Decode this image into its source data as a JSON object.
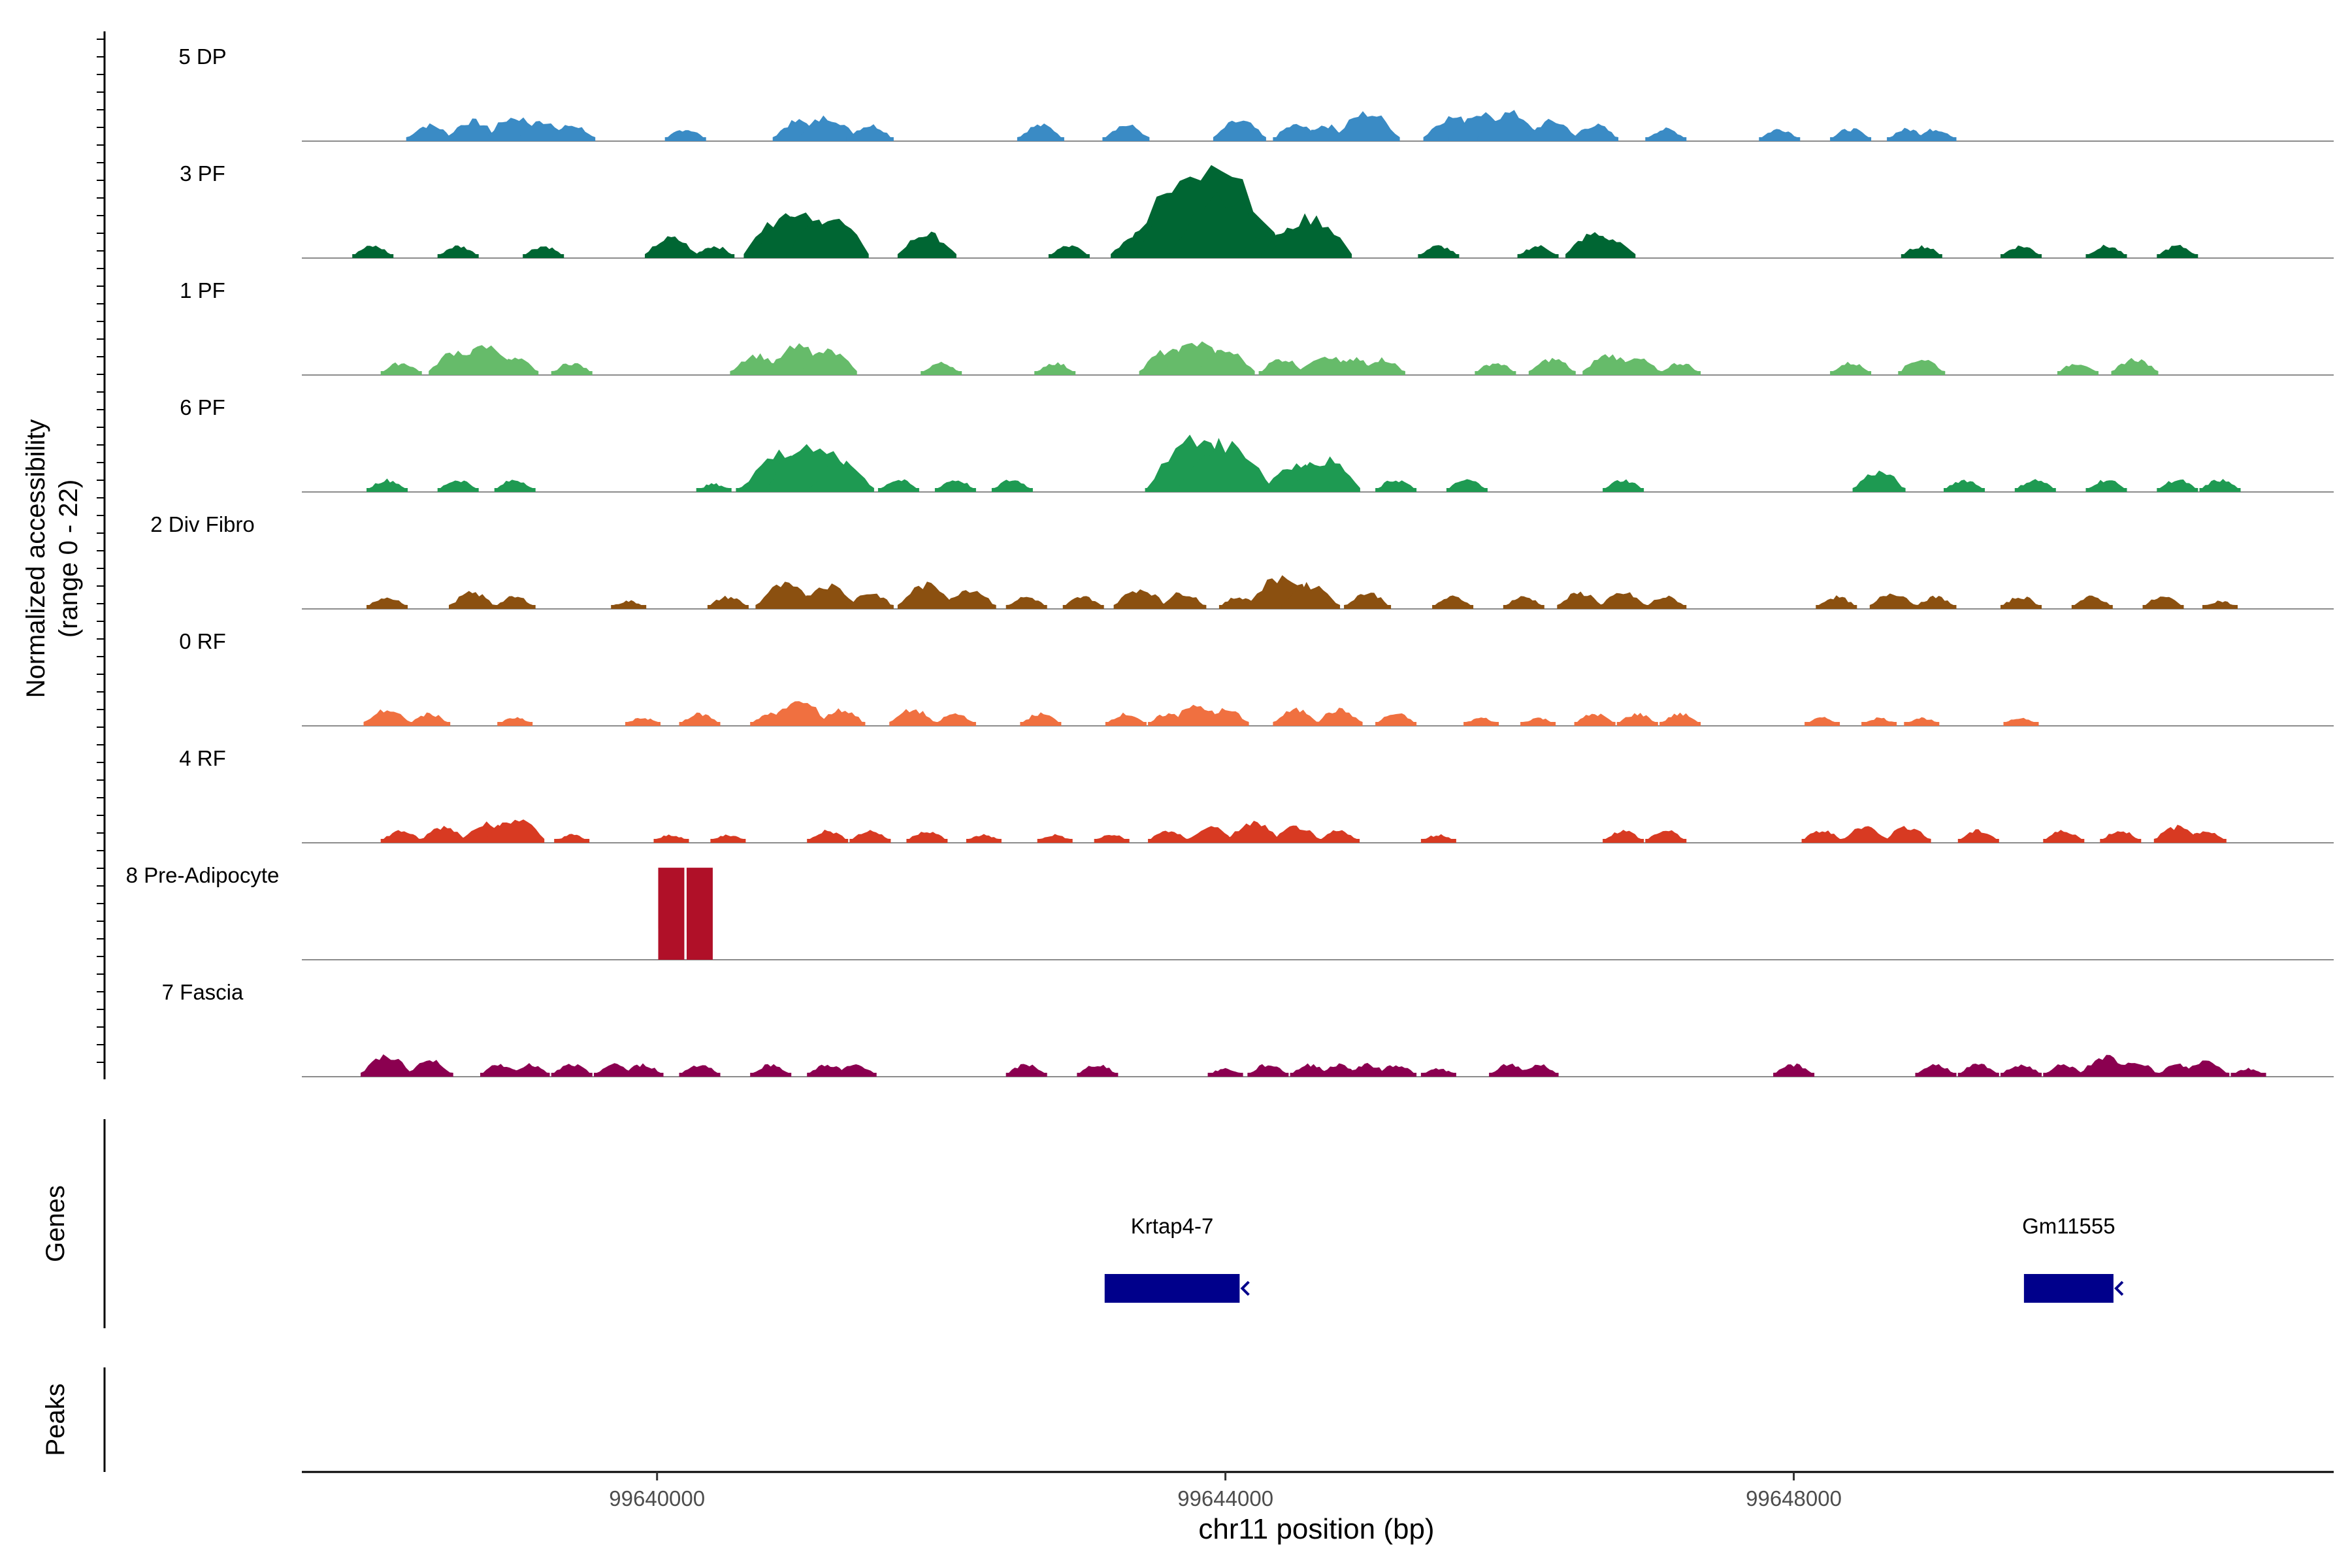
{
  "chart_data": {
    "type": "coverage",
    "title": "",
    "chromosome": "chr11",
    "xlabel": "chr11 position (bp)",
    "xlim": [
      99637500,
      99651800
    ],
    "x_ticks": [
      99640000,
      99644000,
      99648000
    ],
    "x_tick_labels": [
      "99640000",
      "99644000",
      "99648000"
    ],
    "ylabel_line1": "Normalized accessibility",
    "ylabel_line2": "(range 0 - 22)",
    "ylim": [
      0,
      22
    ],
    "tracks": [
      {
        "name": "5 DP",
        "color": "#3A8BC5",
        "peaks": [
          [
            99638400,
            4
          ],
          [
            99638700,
            5
          ],
          [
            99639000,
            6
          ],
          [
            99639200,
            5
          ],
          [
            99639400,
            4
          ],
          [
            99640200,
            3
          ],
          [
            99641000,
            5
          ],
          [
            99641200,
            6
          ],
          [
            99641500,
            4
          ],
          [
            99642700,
            4
          ],
          [
            99643300,
            4
          ],
          [
            99644100,
            5
          ],
          [
            99644500,
            4
          ],
          [
            99644700,
            4
          ],
          [
            99645000,
            7
          ],
          [
            99645600,
            6
          ],
          [
            99645800,
            7
          ],
          [
            99646000,
            7
          ],
          [
            99646300,
            5
          ],
          [
            99646600,
            4
          ],
          [
            99647100,
            3
          ],
          [
            99647900,
            3
          ],
          [
            99648400,
            3
          ],
          [
            99648800,
            3
          ],
          [
            99649000,
            3
          ]
        ]
      },
      {
        "name": "3 PF",
        "color": "#006633",
        "peaks": [
          [
            99638000,
            3
          ],
          [
            99638600,
            3
          ],
          [
            99639200,
            3
          ],
          [
            99640100,
            5
          ],
          [
            99640400,
            3
          ],
          [
            99640900,
            10
          ],
          [
            99641000,
            12
          ],
          [
            99641200,
            10
          ],
          [
            99641900,
            6
          ],
          [
            99642900,
            3
          ],
          [
            99643400,
            6
          ],
          [
            99643600,
            12
          ],
          [
            99643800,
            20
          ],
          [
            99643900,
            21
          ],
          [
            99644000,
            15
          ],
          [
            99644300,
            6
          ],
          [
            99644500,
            8
          ],
          [
            99644600,
            10
          ],
          [
            99645500,
            3
          ],
          [
            99646200,
            3
          ],
          [
            99646600,
            6
          ],
          [
            99646700,
            5
          ],
          [
            99648900,
            3
          ],
          [
            99649600,
            3
          ],
          [
            99650200,
            3
          ],
          [
            99650700,
            3
          ]
        ]
      },
      {
        "name": "1 PF",
        "color": "#66BB6A",
        "peaks": [
          [
            99638200,
            3
          ],
          [
            99638600,
            6
          ],
          [
            99638800,
            7
          ],
          [
            99639000,
            4
          ],
          [
            99639400,
            3
          ],
          [
            99640700,
            5
          ],
          [
            99641000,
            7
          ],
          [
            99641200,
            6
          ],
          [
            99642000,
            3
          ],
          [
            99642800,
            3
          ],
          [
            99643600,
            6
          ],
          [
            99643800,
            8
          ],
          [
            99644000,
            6
          ],
          [
            99644400,
            4
          ],
          [
            99644700,
            5
          ],
          [
            99644900,
            4
          ],
          [
            99645100,
            4
          ],
          [
            99645900,
            3
          ],
          [
            99646300,
            4
          ],
          [
            99646700,
            5
          ],
          [
            99646900,
            4
          ],
          [
            99647200,
            3
          ],
          [
            99648400,
            3
          ],
          [
            99648900,
            4
          ],
          [
            99650000,
            3
          ],
          [
            99650400,
            4
          ]
        ]
      },
      {
        "name": "6 PF",
        "color": "#1E9A52",
        "peaks": [
          [
            99638100,
            3
          ],
          [
            99638600,
            3
          ],
          [
            99639000,
            3
          ],
          [
            99640400,
            2
          ],
          [
            99640700,
            3
          ],
          [
            99640900,
            10
          ],
          [
            99641100,
            12
          ],
          [
            99641300,
            7
          ],
          [
            99641700,
            3
          ],
          [
            99642100,
            3
          ],
          [
            99642500,
            3
          ],
          [
            99643600,
            4
          ],
          [
            99643800,
            13
          ],
          [
            99644000,
            12
          ],
          [
            99644500,
            7
          ],
          [
            99644700,
            8
          ],
          [
            99645200,
            3
          ],
          [
            99645700,
            3
          ],
          [
            99646800,
            3
          ],
          [
            99648600,
            5
          ],
          [
            99649200,
            3
          ],
          [
            99649700,
            3
          ],
          [
            99650200,
            3
          ],
          [
            99650700,
            3
          ],
          [
            99651000,
            3
          ]
        ]
      },
      {
        "name": "2 Div Fibro",
        "color": "#8B5010",
        "peaks": [
          [
            99638100,
            3
          ],
          [
            99638700,
            4
          ],
          [
            99639000,
            3
          ],
          [
            99639800,
            2
          ],
          [
            99640500,
            3
          ],
          [
            99640900,
            6
          ],
          [
            99641200,
            6
          ],
          [
            99641500,
            4
          ],
          [
            99641900,
            6
          ],
          [
            99642200,
            5
          ],
          [
            99642600,
            3
          ],
          [
            99643000,
            3
          ],
          [
            99643400,
            5
          ],
          [
            99643700,
            4
          ],
          [
            99644100,
            3
          ],
          [
            99644400,
            8
          ],
          [
            99644600,
            6
          ],
          [
            99645000,
            4
          ],
          [
            99645600,
            3
          ],
          [
            99646100,
            3
          ],
          [
            99646500,
            4
          ],
          [
            99646800,
            4
          ],
          [
            99647100,
            3
          ],
          [
            99648300,
            3
          ],
          [
            99648700,
            4
          ],
          [
            99649000,
            3
          ],
          [
            99649600,
            3
          ],
          [
            99650100,
            3
          ],
          [
            99650600,
            3
          ],
          [
            99651000,
            2
          ]
        ]
      },
      {
        "name": "0 RF",
        "color": "#F07040",
        "peaks": [
          [
            99638100,
            4
          ],
          [
            99638400,
            3
          ],
          [
            99639000,
            2
          ],
          [
            99639900,
            2
          ],
          [
            99640300,
            3
          ],
          [
            99640800,
            3
          ],
          [
            99641000,
            6
          ],
          [
            99641300,
            4
          ],
          [
            99641800,
            4
          ],
          [
            99642100,
            3
          ],
          [
            99642700,
            3
          ],
          [
            99643300,
            3
          ],
          [
            99643600,
            3
          ],
          [
            99643800,
            5
          ],
          [
            99644000,
            4
          ],
          [
            99644500,
            4
          ],
          [
            99644800,
            4
          ],
          [
            99645200,
            3
          ],
          [
            99645800,
            2
          ],
          [
            99646200,
            2
          ],
          [
            99646600,
            3
          ],
          [
            99646900,
            3
          ],
          [
            99647200,
            3
          ],
          [
            99648200,
            2
          ],
          [
            99648600,
            2
          ],
          [
            99648900,
            2
          ],
          [
            99649600,
            2
          ]
        ]
      },
      {
        "name": "4 RF",
        "color": "#D83A22",
        "peaks": [
          [
            99638200,
            3
          ],
          [
            99638500,
            4
          ],
          [
            99638800,
            5
          ],
          [
            99639000,
            6
          ],
          [
            99639400,
            2
          ],
          [
            99640100,
            2
          ],
          [
            99640500,
            2
          ],
          [
            99641200,
            3
          ],
          [
            99641500,
            3
          ],
          [
            99641900,
            3
          ],
          [
            99642300,
            2
          ],
          [
            99642800,
            2
          ],
          [
            99643200,
            2
          ],
          [
            99643600,
            3
          ],
          [
            99643900,
            4
          ],
          [
            99644200,
            5
          ],
          [
            99644500,
            4
          ],
          [
            99644800,
            3
          ],
          [
            99645500,
            2
          ],
          [
            99646800,
            3
          ],
          [
            99647100,
            3
          ],
          [
            99648200,
            3
          ],
          [
            99648500,
            4
          ],
          [
            99648800,
            4
          ],
          [
            99649300,
            3
          ],
          [
            99649900,
            3
          ],
          [
            99650300,
            3
          ],
          [
            99650700,
            4
          ],
          [
            99650900,
            3
          ]
        ]
      },
      {
        "name": "8 Pre-Adipocyte",
        "color": "#B01028",
        "peaks": [
          [
            99640100,
            20
          ],
          [
            99640300,
            20
          ]
        ]
      },
      {
        "name": "7 Fascia",
        "color": "#8B0050",
        "peaks": [
          [
            99638100,
            5
          ],
          [
            99638400,
            4
          ],
          [
            99638900,
            3
          ],
          [
            99639100,
            3
          ],
          [
            99639400,
            3
          ],
          [
            99639700,
            3
          ],
          [
            99639900,
            3
          ],
          [
            99640300,
            3
          ],
          [
            99640800,
            3
          ],
          [
            99641200,
            3
          ],
          [
            99641400,
            3
          ],
          [
            99642600,
            3
          ],
          [
            99643100,
            3
          ],
          [
            99644000,
            2
          ],
          [
            99644300,
            3
          ],
          [
            99644600,
            3
          ],
          [
            99644800,
            3
          ],
          [
            99645000,
            3
          ],
          [
            99645200,
            3
          ],
          [
            99645500,
            2
          ],
          [
            99646000,
            3
          ],
          [
            99646200,
            3
          ],
          [
            99648000,
            3
          ],
          [
            99649000,
            3
          ],
          [
            99649300,
            3
          ],
          [
            99649600,
            3
          ],
          [
            99649900,
            3
          ],
          [
            99650200,
            5
          ],
          [
            99650400,
            4
          ],
          [
            99650700,
            3
          ],
          [
            99650900,
            4
          ],
          [
            99651200,
            2
          ]
        ]
      }
    ],
    "genes_label": "Genes",
    "genes": [
      {
        "name": "Krtap4-7",
        "start": 99643150,
        "end": 99644100,
        "strand": "-",
        "color": "#00008B"
      },
      {
        "name": "Gm11555",
        "start": 99649620,
        "end": 99650250,
        "strand": "-",
        "color": "#00008B"
      }
    ],
    "peaks_label": "Peaks"
  }
}
